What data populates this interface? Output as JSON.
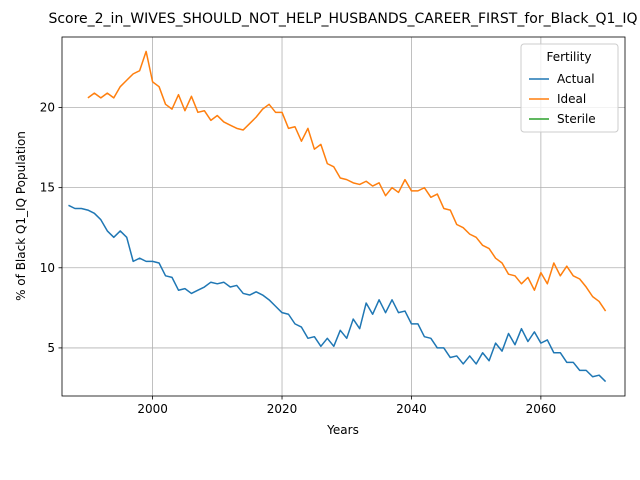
{
  "chart_data": {
    "type": "line",
    "title": "Score_2_in_WIVES_SHOULD_NOT_HELP_HUSBANDS_CAREER_FIRST_for_Black_Q1_IQ",
    "xlabel": "Years",
    "ylabel": "% of Black Q1_IQ Population",
    "xlim": [
      1986.0,
      2073.0
    ],
    "ylim": [
      2.0,
      24.4
    ],
    "xticks": [
      2000,
      2020,
      2040,
      2060
    ],
    "yticks": [
      5,
      10,
      15,
      20
    ],
    "grid": true,
    "legend": {
      "title": "Fertility",
      "placement": "top-right"
    },
    "series": [
      {
        "name": "Actual",
        "color": "#1f77b4",
        "x": [
          1987,
          1988,
          1989,
          1990,
          1991,
          1992,
          1993,
          1994,
          1995,
          1996,
          1997,
          1998,
          1999,
          2000,
          2001,
          2002,
          2003,
          2004,
          2005,
          2006,
          2007,
          2008,
          2009,
          2010,
          2011,
          2012,
          2013,
          2014,
          2015,
          2016,
          2017,
          2018,
          2019,
          2020,
          2021,
          2022,
          2023,
          2024,
          2025,
          2026,
          2027,
          2028,
          2029,
          2030,
          2031,
          2032,
          2033,
          2034,
          2035,
          2036,
          2037,
          2038,
          2039,
          2040,
          2041,
          2042,
          2043,
          2044,
          2045,
          2046,
          2047,
          2048,
          2049,
          2050,
          2051,
          2052,
          2053,
          2054,
          2055,
          2056,
          2057,
          2058,
          2059,
          2060,
          2061,
          2062,
          2063,
          2064,
          2065,
          2066,
          2067,
          2068,
          2069,
          2070
        ],
        "values": [
          13.9,
          13.7,
          13.7,
          13.6,
          13.4,
          13.0,
          12.3,
          11.9,
          12.3,
          11.9,
          10.4,
          10.6,
          10.4,
          10.4,
          10.3,
          9.5,
          9.4,
          8.6,
          8.7,
          8.4,
          8.6,
          8.8,
          9.1,
          9.0,
          9.1,
          8.8,
          8.9,
          8.4,
          8.3,
          8.5,
          8.3,
          8.0,
          7.6,
          7.2,
          7.1,
          6.5,
          6.3,
          5.6,
          5.7,
          5.1,
          5.6,
          5.1,
          6.1,
          5.6,
          6.8,
          6.2,
          7.8,
          7.1,
          8.0,
          7.2,
          8.0,
          7.2,
          7.3,
          6.5,
          6.5,
          5.7,
          5.6,
          5.0,
          5.0,
          4.4,
          4.5,
          4.0,
          4.5,
          4.0,
          4.7,
          4.2,
          5.3,
          4.8,
          5.9,
          5.2,
          6.2,
          5.4,
          6.0,
          5.3,
          5.5,
          4.7,
          4.7,
          4.1,
          4.1,
          3.6,
          3.6,
          3.2,
          3.3,
          2.9
        ]
      },
      {
        "name": "Ideal",
        "color": "#ff7f0e",
        "x": [
          1990,
          1991,
          1992,
          1993,
          1994,
          1995,
          1996,
          1997,
          1998,
          1999,
          2000,
          2001,
          2002,
          2003,
          2004,
          2005,
          2006,
          2007,
          2008,
          2009,
          2010,
          2011,
          2012,
          2013,
          2014,
          2015,
          2016,
          2017,
          2018,
          2019,
          2020,
          2021,
          2022,
          2023,
          2024,
          2025,
          2026,
          2027,
          2028,
          2029,
          2030,
          2031,
          2032,
          2033,
          2034,
          2035,
          2036,
          2037,
          2038,
          2039,
          2040,
          2041,
          2042,
          2043,
          2044,
          2045,
          2046,
          2047,
          2048,
          2049,
          2050,
          2051,
          2052,
          2053,
          2054,
          2055,
          2056,
          2057,
          2058,
          2059,
          2060,
          2061,
          2062,
          2063,
          2064,
          2065,
          2066,
          2067,
          2068,
          2069,
          2070
        ],
        "values": [
          20.6,
          20.9,
          20.6,
          20.9,
          20.6,
          21.3,
          21.7,
          22.1,
          22.3,
          23.5,
          21.6,
          21.3,
          20.2,
          19.9,
          20.8,
          19.8,
          20.7,
          19.7,
          19.8,
          19.2,
          19.5,
          19.1,
          18.9,
          18.7,
          18.6,
          19.0,
          19.4,
          19.9,
          20.2,
          19.7,
          19.7,
          18.7,
          18.8,
          17.9,
          18.7,
          17.4,
          17.7,
          16.5,
          16.3,
          15.6,
          15.5,
          15.3,
          15.2,
          15.4,
          15.1,
          15.3,
          14.5,
          15.0,
          14.7,
          15.5,
          14.8,
          14.8,
          15.0,
          14.4,
          14.6,
          13.7,
          13.6,
          12.7,
          12.5,
          12.1,
          11.9,
          11.4,
          11.2,
          10.6,
          10.3,
          9.6,
          9.5,
          9.0,
          9.4,
          8.6,
          9.7,
          9.0,
          10.3,
          9.5,
          10.1,
          9.5,
          9.3,
          8.8,
          8.2,
          7.9,
          7.3
        ]
      },
      {
        "name": "Sterile",
        "color": "#2ca02c",
        "x": [],
        "values": []
      }
    ]
  }
}
